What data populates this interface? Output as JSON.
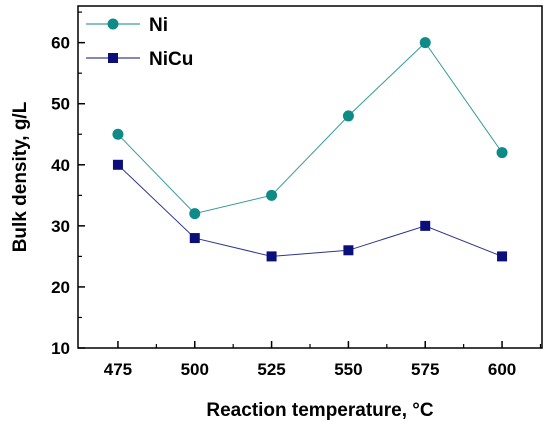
{
  "chart_data": {
    "type": "line",
    "xlabel": "Reaction temperature, °C",
    "ylabel": "Bulk density, g/L",
    "x": [
      475,
      500,
      525,
      550,
      575,
      600
    ],
    "x_ticks": [
      "475",
      "500",
      "525",
      "550",
      "575",
      "600"
    ],
    "y_ticks": [
      "10",
      "20",
      "30",
      "40",
      "50",
      "60"
    ],
    "ylim": [
      10,
      66
    ],
    "xlim": [
      462,
      613
    ],
    "grid": false,
    "legend_position": "top-left",
    "series": [
      {
        "name": "Ni",
        "values": [
          45,
          32,
          35,
          48,
          60,
          42
        ],
        "color": "#0e8a87",
        "marker": "circle"
      },
      {
        "name": "NiCu",
        "values": [
          40,
          28,
          25,
          26,
          30,
          25
        ],
        "color": "#0b0f7a",
        "marker": "square"
      }
    ]
  }
}
